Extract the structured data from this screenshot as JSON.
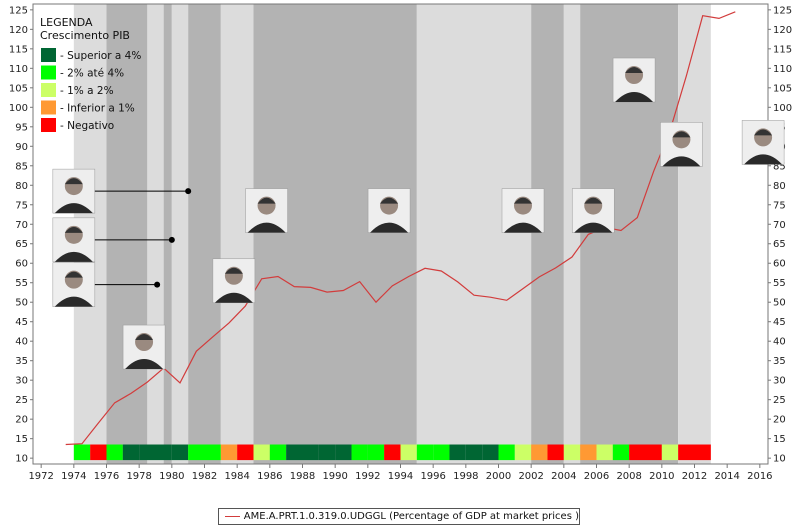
{
  "chart_data": {
    "type": "line",
    "x_range": [
      1971.5,
      2016.5
    ],
    "y_range": [
      8.5,
      126.5
    ],
    "x_ticks": [
      1972,
      1974,
      1976,
      1978,
      1980,
      1982,
      1984,
      1986,
      1988,
      1990,
      1992,
      1994,
      1996,
      1998,
      2000,
      2002,
      2004,
      2006,
      2008,
      2010,
      2012,
      2014,
      2016
    ],
    "y_ticks": [
      10,
      15,
      20,
      25,
      30,
      35,
      40,
      45,
      50,
      55,
      60,
      65,
      70,
      75,
      80,
      85,
      90,
      95,
      100,
      105,
      110,
      115,
      120,
      125
    ],
    "series": [
      {
        "name": "AME.A.PRT.1.0.319.0.UDGGL (Percentage of GDP at market prices )",
        "color": "#d23c3c",
        "x": [
          1973.5,
          1974.5,
          1975.5,
          1976.5,
          1977.5,
          1978.5,
          1979.5,
          1980.5,
          1981.5,
          1982.5,
          1983.5,
          1984.5,
          1985.5,
          1986.5,
          1987.5,
          1988.5,
          1989.5,
          1990.5,
          1991.5,
          1992.5,
          1993.5,
          1994.5,
          1995.5,
          1996.5,
          1997.5,
          1998.5,
          1999.5,
          2000.5,
          2001.5,
          2002.5,
          2003.5,
          2004.5,
          2005.5,
          2006.5,
          2007.5,
          2008.5,
          2009.5,
          2010.5,
          2011.5,
          2012.5,
          2013.5,
          2014.5
        ],
        "values": [
          13.5,
          13.7,
          19.0,
          24.2,
          26.6,
          29.5,
          33.1,
          29.3,
          37.4,
          41.1,
          44.7,
          49.0,
          56.0,
          56.6,
          54.0,
          53.8,
          52.6,
          53.0,
          55.3,
          50.0,
          54.2,
          56.6,
          58.7,
          58.0,
          55.2,
          51.8,
          51.3,
          50.5,
          53.5,
          56.5,
          58.8,
          61.6,
          67.4,
          69.2,
          68.4,
          71.7,
          83.6,
          94.0,
          108.0,
          123.5,
          122.8,
          124.5
        ]
      }
    ],
    "government_periods": [
      {
        "from": 1974.0,
        "to": 1976.0,
        "shade": "light"
      },
      {
        "from": 1976.0,
        "to": 1978.5,
        "shade": "dark"
      },
      {
        "from": 1978.5,
        "to": 1979.5,
        "shade": "light"
      },
      {
        "from": 1979.5,
        "to": 1980.0,
        "shade": "dark"
      },
      {
        "from": 1980.0,
        "to": 1981.0,
        "shade": "light"
      },
      {
        "from": 1981.0,
        "to": 1983.0,
        "shade": "dark"
      },
      {
        "from": 1983.0,
        "to": 1985.0,
        "shade": "light"
      },
      {
        "from": 1985.0,
        "to": 1995.0,
        "shade": "dark"
      },
      {
        "from": 1995.0,
        "to": 2002.0,
        "shade": "light"
      },
      {
        "from": 2002.0,
        "to": 2004.0,
        "shade": "dark"
      },
      {
        "from": 2004.0,
        "to": 2005.0,
        "shade": "light"
      },
      {
        "from": 2005.0,
        "to": 2011.0,
        "shade": "dark"
      },
      {
        "from": 2011.0,
        "to": 2013.0,
        "shade": "light"
      }
    ],
    "gdp_growth_strip": {
      "y_from": 9.5,
      "y_to": 13.5,
      "colors": {
        "superior": "#006633",
        "medio": "#00ff00",
        "baixo": "#ccff66",
        "inferior": "#ff9933",
        "negativo": "#ff0000"
      },
      "years": [
        {
          "year": 1974,
          "cat": "medio"
        },
        {
          "year": 1975,
          "cat": "negativo"
        },
        {
          "year": 1976,
          "cat": "medio"
        },
        {
          "year": 1977,
          "cat": "superior"
        },
        {
          "year": 1978,
          "cat": "superior"
        },
        {
          "year": 1979,
          "cat": "superior"
        },
        {
          "year": 1980,
          "cat": "superior"
        },
        {
          "year": 1981,
          "cat": "medio"
        },
        {
          "year": 1982,
          "cat": "medio"
        },
        {
          "year": 1983,
          "cat": "inferior"
        },
        {
          "year": 1984,
          "cat": "negativo"
        },
        {
          "year": 1985,
          "cat": "baixo"
        },
        {
          "year": 1986,
          "cat": "medio"
        },
        {
          "year": 1987,
          "cat": "superior"
        },
        {
          "year": 1988,
          "cat": "superior"
        },
        {
          "year": 1989,
          "cat": "superior"
        },
        {
          "year": 1990,
          "cat": "superior"
        },
        {
          "year": 1991,
          "cat": "medio"
        },
        {
          "year": 1992,
          "cat": "medio"
        },
        {
          "year": 1993,
          "cat": "negativo"
        },
        {
          "year": 1994,
          "cat": "baixo"
        },
        {
          "year": 1995,
          "cat": "medio"
        },
        {
          "year": 1996,
          "cat": "medio"
        },
        {
          "year": 1997,
          "cat": "superior"
        },
        {
          "year": 1998,
          "cat": "superior"
        },
        {
          "year": 1999,
          "cat": "superior"
        },
        {
          "year": 2000,
          "cat": "medio"
        },
        {
          "year": 2001,
          "cat": "baixo"
        },
        {
          "year": 2002,
          "cat": "inferior"
        },
        {
          "year": 2003,
          "cat": "negativo"
        },
        {
          "year": 2004,
          "cat": "baixo"
        },
        {
          "year": 2005,
          "cat": "inferior"
        },
        {
          "year": 2006,
          "cat": "baixo"
        },
        {
          "year": 2007,
          "cat": "medio"
        },
        {
          "year": 2008,
          "cat": "negativo"
        },
        {
          "year": 2009,
          "cat": "negativo"
        },
        {
          "year": 2010,
          "cat": "baixo"
        },
        {
          "year": 2011,
          "cat": "negativo"
        },
        {
          "year": 2012,
          "cat": "negativo"
        }
      ]
    },
    "legend": {
      "title": "LEGENDA",
      "subtitle": "Crescimento PIB",
      "placement": "top-left",
      "items": [
        {
          "label": "- Superior a 4%",
          "color": "#006633"
        },
        {
          "label": "- 2% até 4%",
          "color": "#00ff00"
        },
        {
          "label": "- 1% a 2%",
          "color": "#ccff66"
        },
        {
          "label": "- Inferior a 1%",
          "color": "#ff9933"
        },
        {
          "label": "- Negativo",
          "color": "#ff0000"
        }
      ]
    },
    "portraits": [
      {
        "id": "portrait-1974-a",
        "x": 1974.0,
        "y": 78.5,
        "pointer_to": [
          1981.0,
          78.5
        ]
      },
      {
        "id": "portrait-1974-b",
        "x": 1974.0,
        "y": 66.0,
        "pointer_to": [
          1980.0,
          66.0
        ]
      },
      {
        "id": "portrait-1974-c",
        "x": 1974.0,
        "y": 54.5,
        "pointer_to": [
          1979.1,
          54.5
        ]
      },
      {
        "id": "portrait-1977",
        "x": 1978.3,
        "y": 38.5
      },
      {
        "id": "portrait-1980",
        "x": 1983.8,
        "y": 55.5
      },
      {
        "id": "portrait-1983",
        "x": 1985.8,
        "y": 73.5
      },
      {
        "id": "portrait-1986",
        "x": 1993.3,
        "y": 73.5
      },
      {
        "id": "portrait-1996",
        "x": 2001.5,
        "y": 73.5
      },
      {
        "id": "portrait-2002",
        "x": 2005.8,
        "y": 73.5
      },
      {
        "id": "portrait-2004",
        "x": 2008.3,
        "y": 107.0
      },
      {
        "id": "portrait-2005",
        "x": 2011.2,
        "y": 90.5
      },
      {
        "id": "portrait-2011",
        "x": 2016.2,
        "y": 91.0
      }
    ],
    "grid": false,
    "xlabel": "",
    "ylabel": ""
  }
}
